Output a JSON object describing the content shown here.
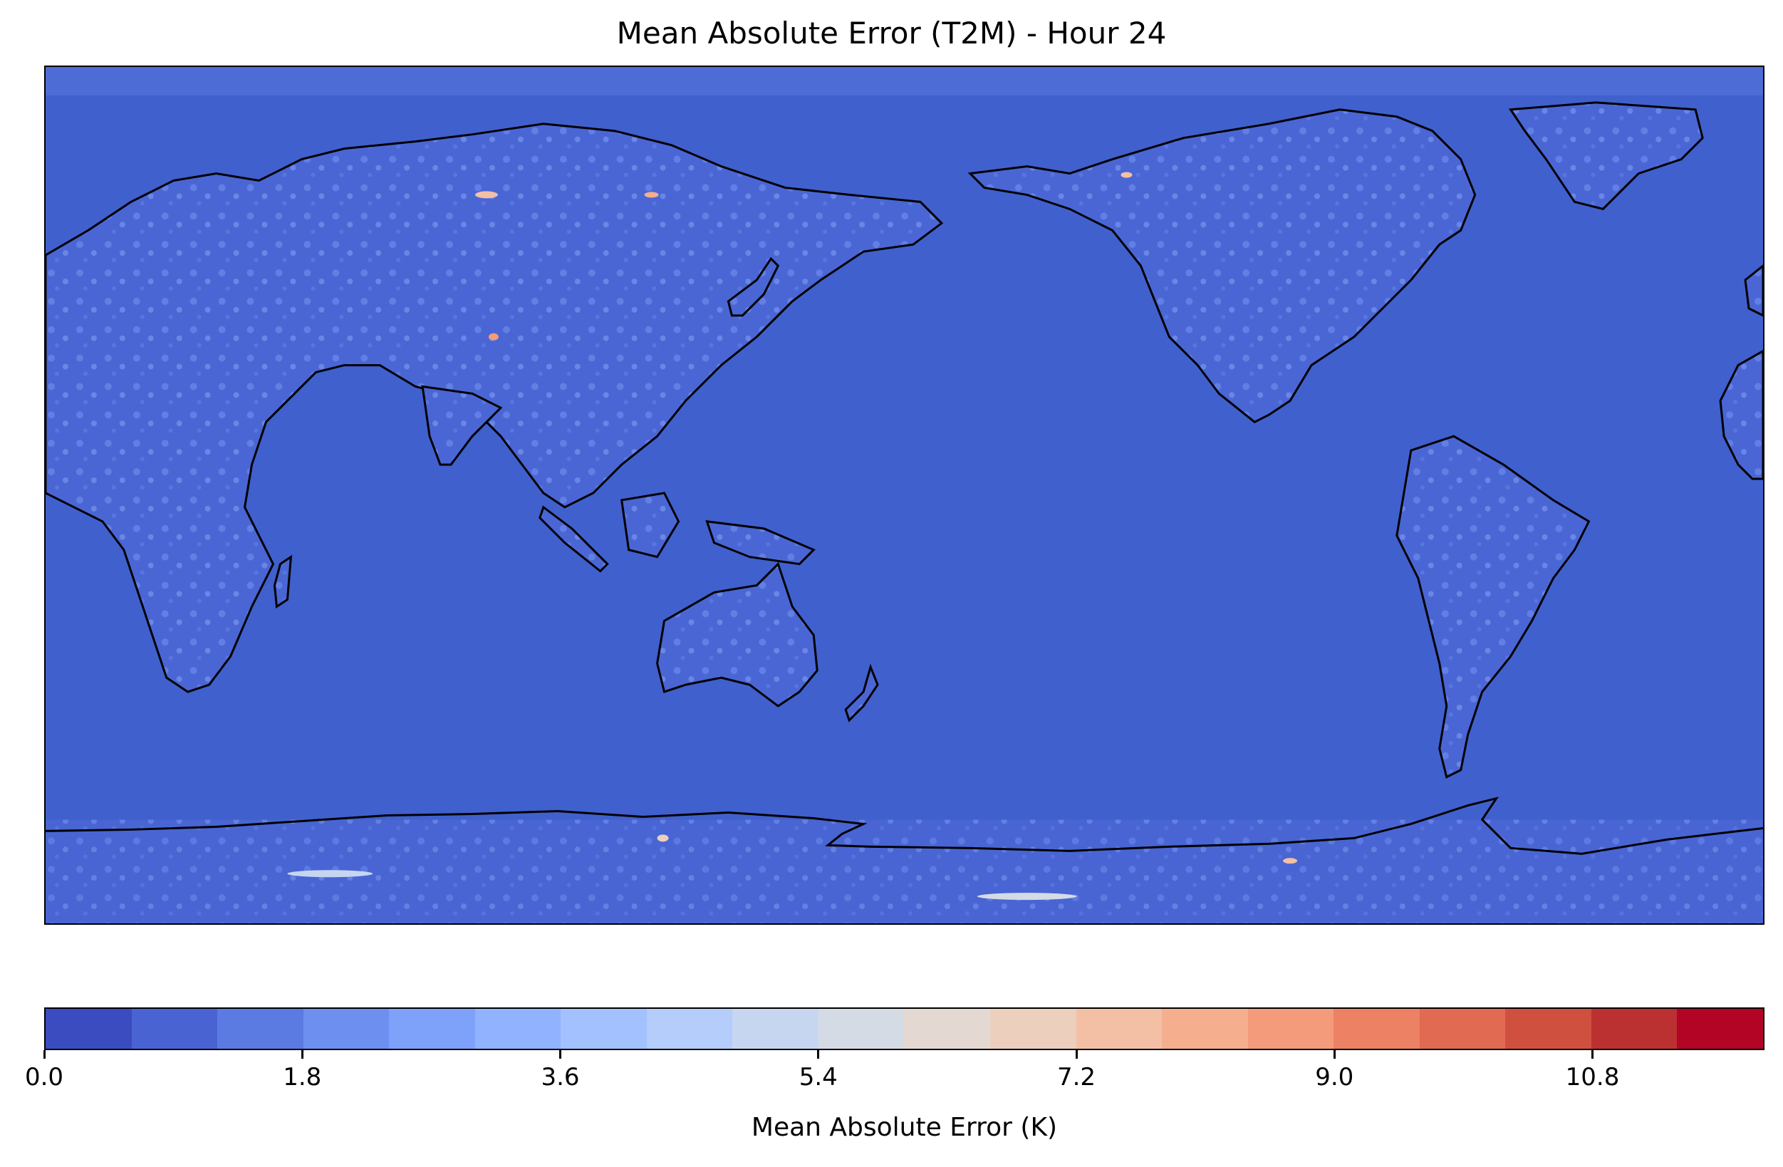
{
  "title": "Mean Absolute Error (T2M) - Hour 24",
  "map": {
    "projection": "PlateCarree, central longitude 180",
    "background_color": "#4060cd",
    "coastline_color": "#000000"
  },
  "colorbar": {
    "label": "Mean Absolute Error (K)",
    "ticks": [
      "0.0",
      "1.8",
      "3.6",
      "5.4",
      "7.2",
      "9.0",
      "10.8"
    ],
    "tick_values": [
      0.0,
      1.8,
      3.6,
      5.4,
      7.2,
      9.0,
      10.8
    ],
    "range": [
      0.0,
      12.0
    ],
    "colors": [
      "#3b4cc0",
      "#4a63d3",
      "#5b7be2",
      "#6c8ff0",
      "#7ea1f9",
      "#91b2fe",
      "#a3c1fe",
      "#b5cdfa",
      "#c6d6f1",
      "#d5dbe5",
      "#e3d9d2",
      "#eccfbd",
      "#f3c0a6",
      "#f5ae8e",
      "#f39b7a",
      "#ec8164",
      "#e16a52",
      "#d0503f",
      "#bb3030",
      "#b40426"
    ]
  }
}
